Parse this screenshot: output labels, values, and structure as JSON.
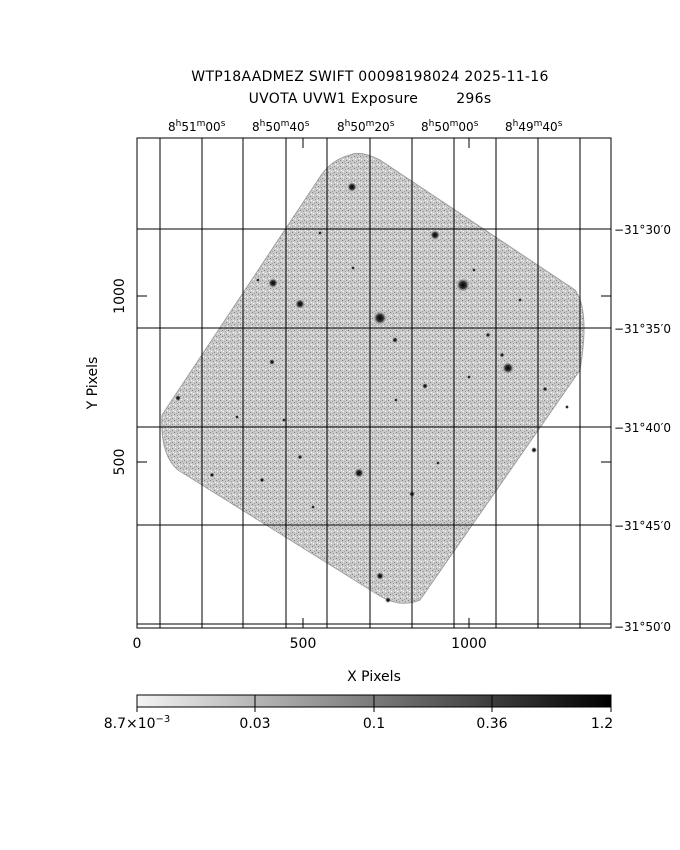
{
  "title": {
    "line1": "WTP18AADMEZ SWIFT 00098198024 2025-11-16",
    "line2": "UVOTA UVW1 Exposure        296s"
  },
  "axes": {
    "xlabel": "X Pixels",
    "ylabel": "Y Pixels",
    "x_ticks": [
      "0",
      "500",
      "1000"
    ],
    "y_ticks": [
      "500",
      "1000"
    ]
  },
  "ra_labels": [
    {
      "h": "8",
      "m": "51",
      "s": "00"
    },
    {
      "h": "8",
      "m": "50",
      "s": "40"
    },
    {
      "h": "8",
      "m": "50",
      "s": "20"
    },
    {
      "h": "8",
      "m": "50",
      "s": "00"
    },
    {
      "h": "8",
      "m": "49",
      "s": "40"
    }
  ],
  "dec_labels": [
    "−31°30′0",
    "−31°35′0",
    "−31°40′0",
    "−31°45′0",
    "−31°50′0"
  ],
  "colorbar": {
    "tick_labels": [
      "8.7×10",
      "0.03",
      "0.1",
      "0.36",
      "1.2"
    ],
    "first_exponent": "−3"
  }
}
